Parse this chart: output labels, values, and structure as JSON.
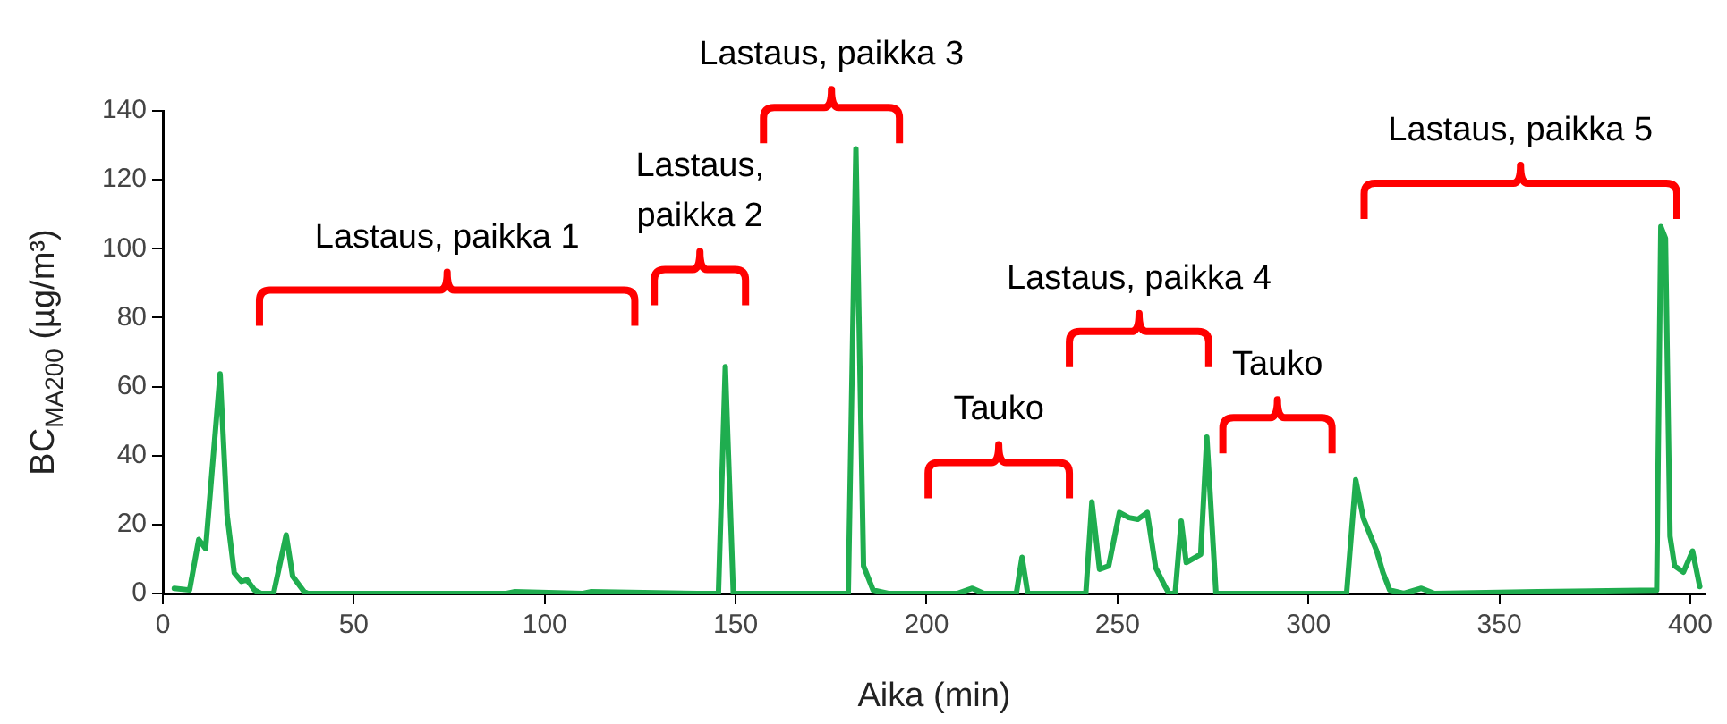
{
  "chart_data": {
    "type": "line",
    "xlabel": "Aika (min)",
    "ylabel": "BC$_{MA200}$ (µg/m³)",
    "xlim": [
      0,
      404
    ],
    "xticks": [
      0,
      50,
      100,
      150,
      200,
      250,
      300,
      350,
      400
    ],
    "ylim": [
      0,
      140
    ],
    "yticks": [
      0,
      20,
      40,
      60,
      80,
      100,
      120,
      140
    ],
    "grid": false,
    "legend": false,
    "marker": "none",
    "line_style": "solid",
    "series": [
      {
        "color": "#1fad4f",
        "x": [
          3,
          7,
          9.4,
          11.2,
          15,
          16.8,
          18.7,
          20.6,
          22,
          24,
          25.7,
          29,
          32.3,
          34,
          37,
          38,
          90,
          92,
          110,
          112,
          140,
          145.5,
          147.3,
          149.4,
          152,
          179.5,
          181.5,
          183.5,
          186,
          190,
          208,
          212,
          215,
          223.5,
          225,
          226.5,
          241.7,
          243.3,
          245.3,
          247.7,
          250.5,
          253,
          255.3,
          257.8,
          260,
          262.5,
          263.5,
          265.1,
          266.7,
          268,
          271.8,
          273.4,
          275.8,
          310,
          312.4,
          314.4,
          317.9,
          319.5,
          321.3,
          325,
          329.6,
          333,
          360,
          391.2,
          392.3,
          393.5,
          394.7,
          395.9,
          398.2,
          400.6,
          402.5
        ],
        "values": [
          1.5,
          1,
          15.7,
          13,
          63.7,
          23,
          6,
          3.5,
          4,
          1,
          0,
          0,
          17,
          5,
          0.5,
          0,
          0,
          0.5,
          0,
          0.5,
          0,
          0,
          65.8,
          0,
          0,
          0,
          129,
          8,
          1,
          0,
          0,
          1.5,
          0,
          0,
          10.5,
          0,
          0,
          26.6,
          7,
          8,
          23.5,
          22,
          21.5,
          23.5,
          7.5,
          2,
          0,
          0,
          21,
          9,
          11.4,
          45.4,
          0,
          0,
          33,
          21.8,
          12.3,
          6.2,
          1,
          0,
          1.5,
          0,
          0.5,
          1,
          106.4,
          103,
          16.6,
          8,
          6.2,
          12.3,
          2
        ]
      }
    ],
    "annotations": [
      "Lastaus, paikka 1",
      "Lastaus, paikka 2",
      "Lastaus, paikka 3",
      "Tauko",
      "Lastaus, paikka 4",
      "Tauko",
      "Lastaus, paikka 5"
    ]
  }
}
